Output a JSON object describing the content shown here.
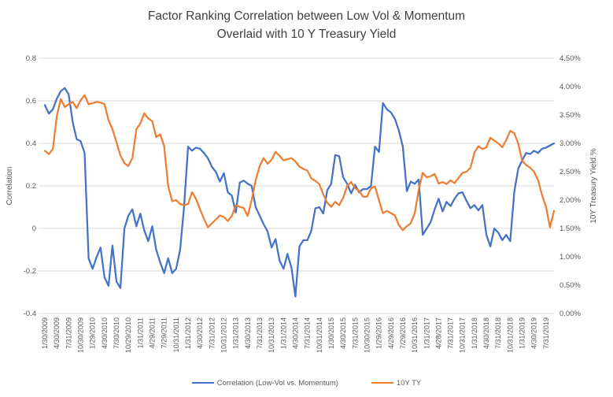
{
  "chart_data": {
    "type": "line",
    "title_line1": "Factor Ranking Correlation between Low Vol & Momentum",
    "title_line2": "Overlaid with 10 Y Treasury Yield",
    "grid": "horizontal",
    "legend_position": "bottom",
    "colors": {
      "gridline": "#d9d9d9",
      "tick_text": "#595959",
      "title_text": "#3f3f3f"
    },
    "left_axis": {
      "label": "Correlation",
      "min": -0.4,
      "max": 0.8,
      "ticks": [
        "0.8",
        "0.6",
        "0.4",
        "0.2",
        "0",
        "-0.2",
        "-0.4"
      ]
    },
    "right_axis": {
      "label": "10Y Treasury Yield %",
      "min": 0.0,
      "max": 4.5,
      "ticks": [
        "4.50%",
        "4.00%",
        "3.50%",
        "3.00%",
        "2.50%",
        "2.00%",
        "1.50%",
        "1.00%",
        "0.50%",
        "0.00%"
      ]
    },
    "x_tick_labels": [
      "1/30/2009",
      "4/30/2009",
      "7/31/2009",
      "10/30/2009",
      "1/29/2010",
      "4/30/2010",
      "7/30/2010",
      "10/29/2010",
      "1/31/2011",
      "4/29/2011",
      "7/29/2011",
      "10/31/2011",
      "1/31/2012",
      "4/30/2012",
      "7/31/2012",
      "10/31/2012",
      "1/31/2013",
      "4/30/2013",
      "7/31/2013",
      "10/31/2013",
      "1/31/2014",
      "4/30/2014",
      "7/31/2014",
      "10/31/2014",
      "1/30/2015",
      "4/30/2015",
      "7/31/2015",
      "10/30/2015",
      "1/29/2016",
      "4/29/2016",
      "7/29/2016",
      "10/31/2016",
      "1/31/2017",
      "4/28/2017",
      "7/31/2017",
      "10/31/2017",
      "1/31/2018",
      "4/30/2018",
      "7/31/2018",
      "10/31/2018",
      "1/31/2019",
      "4/30/2019",
      "7/31/2019"
    ],
    "x_tick_every_n_points": 3,
    "series": [
      {
        "name": "Correlation (Low-Vol vs. Momentum)",
        "color": "#4472C4",
        "axis": "left",
        "values": [
          0.58,
          0.54,
          0.56,
          0.61,
          0.645,
          0.66,
          0.63,
          0.5,
          0.42,
          0.41,
          0.355,
          -0.14,
          -0.19,
          -0.135,
          -0.09,
          -0.23,
          -0.27,
          -0.08,
          -0.25,
          -0.28,
          0.0,
          0.06,
          0.09,
          0.01,
          0.07,
          -0.01,
          -0.06,
          0.01,
          -0.1,
          -0.16,
          -0.21,
          -0.14,
          -0.21,
          -0.19,
          -0.1,
          0.1,
          0.385,
          0.365,
          0.38,
          0.375,
          0.355,
          0.33,
          0.29,
          0.265,
          0.22,
          0.26,
          0.17,
          0.155,
          0.075,
          0.215,
          0.225,
          0.21,
          0.2,
          0.1,
          0.06,
          0.02,
          -0.015,
          -0.09,
          -0.05,
          -0.15,
          -0.19,
          -0.12,
          -0.185,
          -0.32,
          -0.085,
          -0.055,
          -0.055,
          -0.01,
          0.095,
          0.1,
          0.07,
          0.18,
          0.21,
          0.345,
          0.34,
          0.24,
          0.21,
          0.165,
          0.205,
          0.17,
          0.185,
          0.185,
          0.2,
          0.385,
          0.36,
          0.59,
          0.56,
          0.545,
          0.515,
          0.46,
          0.385,
          0.175,
          0.22,
          0.21,
          0.23,
          -0.03,
          0.0,
          0.03,
          0.09,
          0.14,
          0.08,
          0.125,
          0.105,
          0.14,
          0.165,
          0.17,
          0.13,
          0.095,
          0.11,
          0.085,
          0.11,
          -0.03,
          -0.085,
          0.0,
          -0.02,
          -0.055,
          -0.03,
          -0.06,
          0.17,
          0.28,
          0.32,
          0.355,
          0.35,
          0.365,
          0.355,
          0.375,
          0.38,
          0.39,
          0.4
        ]
      },
      {
        "name": "10Y TY",
        "color": "#ED7D31",
        "axis": "right",
        "values": [
          2.87,
          2.81,
          2.9,
          3.48,
          3.78,
          3.64,
          3.69,
          3.73,
          3.62,
          3.76,
          3.85,
          3.69,
          3.71,
          3.73,
          3.72,
          3.69,
          3.41,
          3.25,
          3.02,
          2.79,
          2.65,
          2.6,
          2.74,
          3.25,
          3.35,
          3.53,
          3.44,
          3.39,
          3.11,
          3.16,
          2.95,
          2.25,
          1.98,
          2.0,
          1.93,
          1.91,
          1.93,
          2.14,
          2.02,
          1.84,
          1.67,
          1.52,
          1.59,
          1.66,
          1.73,
          1.7,
          1.63,
          1.72,
          1.91,
          1.88,
          1.86,
          1.72,
          2.0,
          2.35,
          2.6,
          2.74,
          2.64,
          2.71,
          2.85,
          2.78,
          2.7,
          2.72,
          2.74,
          2.68,
          2.59,
          2.55,
          2.52,
          2.38,
          2.34,
          2.28,
          2.1,
          1.95,
          1.88,
          1.97,
          1.91,
          2.04,
          2.25,
          2.32,
          2.21,
          2.16,
          2.06,
          2.06,
          2.21,
          2.24,
          2.0,
          1.77,
          1.81,
          1.77,
          1.73,
          1.56,
          1.47,
          1.54,
          1.59,
          1.77,
          2.18,
          2.48,
          2.4,
          2.42,
          2.46,
          2.29,
          2.32,
          2.28,
          2.35,
          2.3,
          2.39,
          2.48,
          2.5,
          2.57,
          2.84,
          2.95,
          2.9,
          2.93,
          3.1,
          3.05,
          3.0,
          2.93,
          3.06,
          3.22,
          3.18,
          3.0,
          2.69,
          2.62,
          2.57,
          2.5,
          2.35,
          2.09,
          1.88,
          1.52,
          1.81
        ]
      }
    ]
  }
}
